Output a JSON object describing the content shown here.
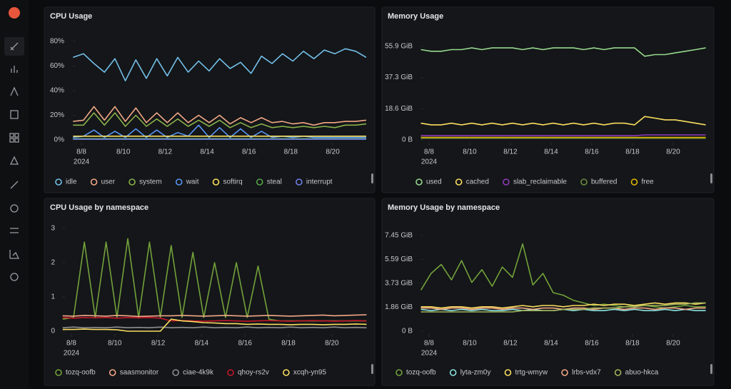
{
  "chart_data": [
    {
      "type": "line",
      "title": "CPU Usage",
      "x": [
        7.6,
        8.1,
        8.6,
        9.1,
        9.6,
        10.1,
        10.6,
        11.1,
        11.6,
        12.1,
        12.6,
        13.1,
        13.6,
        14.1,
        14.6,
        15.1,
        15.6,
        16.1,
        16.6,
        17.1,
        17.6,
        18.1,
        18.6,
        19.1,
        19.6,
        20.1,
        20.6,
        21.1,
        21.6
      ],
      "xlim": [
        7.6,
        21.6
      ],
      "xticks": [
        {
          "value": 8,
          "label": "8/8"
        },
        {
          "value": 10,
          "label": "8/10"
        },
        {
          "value": 12,
          "label": "8/12"
        },
        {
          "value": 14,
          "label": "8/14"
        },
        {
          "value": 16,
          "label": "8/16"
        },
        {
          "value": 18,
          "label": "8/18"
        },
        {
          "value": 20,
          "label": "8/20"
        }
      ],
      "x_year": "2024",
      "ylim": [
        0,
        80
      ],
      "yticks": [
        {
          "value": 0,
          "label": "0%"
        },
        {
          "value": 20,
          "label": "20%"
        },
        {
          "value": 40,
          "label": "40%"
        },
        {
          "value": 60,
          "label": "60%"
        },
        {
          "value": 80,
          "label": "80%"
        }
      ],
      "series": [
        {
          "name": "idle",
          "color": "#73bfe8",
          "values": [
            67,
            70,
            62,
            55,
            66,
            48,
            65,
            50,
            66,
            52,
            67,
            55,
            64,
            56,
            66,
            58,
            63,
            54,
            68,
            62,
            70,
            64,
            72,
            66,
            73,
            70,
            74,
            72,
            67
          ]
        },
        {
          "name": "user",
          "color": "#f2a886",
          "values": [
            15,
            16,
            27,
            16,
            27,
            15,
            26,
            14,
            22,
            14,
            22,
            14,
            20,
            14,
            20,
            13,
            18,
            14,
            18,
            14,
            15,
            13,
            14,
            12,
            14,
            14,
            15,
            15,
            16
          ]
        },
        {
          "name": "system",
          "color": "#8ab04a",
          "values": [
            12,
            12,
            22,
            12,
            22,
            11,
            20,
            11,
            17,
            11,
            17,
            11,
            16,
            11,
            16,
            10,
            14,
            10,
            13,
            10,
            11,
            10,
            11,
            10,
            11,
            10,
            12,
            12,
            13
          ]
        },
        {
          "name": "wait",
          "color": "#5794f2",
          "values": [
            2,
            3,
            8,
            2,
            7,
            2,
            9,
            2,
            8,
            2,
            6,
            3,
            12,
            2,
            10,
            2,
            9,
            2,
            7,
            2,
            3,
            2,
            3,
            2,
            2,
            2,
            2,
            2,
            2
          ]
        },
        {
          "name": "softirq",
          "color": "#fade5f",
          "values": [
            3,
            3,
            3,
            3,
            3,
            3,
            3,
            3,
            3,
            3,
            3,
            3,
            3,
            3,
            3,
            3,
            3,
            3,
            3,
            3,
            3,
            3,
            3,
            3,
            3,
            3,
            3,
            3,
            3
          ]
        },
        {
          "name": "steal",
          "color": "#56a64b",
          "values": [
            1,
            1,
            1,
            1,
            1,
            1,
            1,
            1,
            1,
            1,
            1,
            1,
            1,
            1,
            1,
            1,
            1,
            1,
            1,
            1,
            1,
            1,
            1,
            1,
            1,
            1,
            1,
            1,
            1
          ]
        },
        {
          "name": "interrupt",
          "color": "#6f7fe6",
          "values": [
            0.5,
            0.5,
            0.5,
            0.5,
            0.5,
            0.5,
            0.5,
            0.5,
            0.5,
            0.5,
            0.5,
            0.5,
            0.5,
            0.5,
            0.5,
            0.5,
            0.5,
            0.5,
            0.5,
            0.5,
            0.5,
            0.5,
            0.5,
            0.5,
            0.5,
            0.5,
            0.5,
            0.5,
            0.5
          ]
        }
      ]
    },
    {
      "type": "line",
      "title": "Memory Usage",
      "x": [
        7.6,
        8.1,
        8.6,
        9.1,
        9.6,
        10.1,
        10.6,
        11.1,
        11.6,
        12.1,
        12.6,
        13.1,
        13.6,
        14.1,
        14.6,
        15.1,
        15.6,
        16.1,
        16.6,
        17.1,
        17.6,
        18.1,
        18.6,
        19.1,
        19.6,
        20.1,
        20.6,
        21.1,
        21.6
      ],
      "xlim": [
        7.6,
        21.6
      ],
      "xticks": [
        {
          "value": 8,
          "label": "8/8"
        },
        {
          "value": 10,
          "label": "8/10"
        },
        {
          "value": 12,
          "label": "8/12"
        },
        {
          "value": 14,
          "label": "8/14"
        },
        {
          "value": 16,
          "label": "8/16"
        },
        {
          "value": 18,
          "label": "8/18"
        },
        {
          "value": 20,
          "label": "8/20"
        }
      ],
      "x_year": "2024",
      "ylim": [
        0,
        55.9
      ],
      "yticks": [
        {
          "value": 0,
          "label": "0 B"
        },
        {
          "value": 18.6,
          "label": "18.6 GiB"
        },
        {
          "value": 37.3,
          "label": "37.3 GiB"
        },
        {
          "value": 55.9,
          "label": "55.9 GiB"
        }
      ],
      "series": [
        {
          "name": "used",
          "color": "#96d98d",
          "values": [
            54,
            53,
            53,
            54,
            54,
            55,
            54,
            55,
            55,
            55,
            54,
            55,
            54,
            55,
            55,
            55,
            54,
            55,
            54,
            55,
            55,
            55,
            50,
            51,
            51,
            52,
            53,
            54,
            55
          ]
        },
        {
          "name": "cached",
          "color": "#fade5f",
          "values": [
            10,
            9,
            9,
            10,
            9,
            10,
            9,
            10,
            9,
            10,
            9,
            10,
            9,
            10,
            9,
            10,
            9,
            10,
            9,
            10,
            10,
            9,
            14,
            13,
            12,
            12,
            11,
            10,
            9
          ]
        },
        {
          "name": "slab_reclaimable",
          "color": "#8f3bb8",
          "values": [
            2.5,
            2.5,
            2.5,
            2.5,
            2.5,
            2.5,
            2.5,
            2.5,
            2.5,
            2.5,
            2.5,
            2.5,
            2.5,
            2.5,
            2.5,
            2.5,
            2.5,
            2.5,
            2.5,
            2.5,
            2.5,
            2.5,
            3,
            3,
            3,
            3,
            3,
            3,
            3
          ]
        },
        {
          "name": "buffered",
          "color": "#6b8c3a",
          "values": [
            1,
            1,
            1,
            1,
            1,
            1,
            1,
            1,
            1,
            1,
            1,
            1,
            1,
            1,
            1,
            1,
            1,
            1,
            1,
            1,
            1,
            1,
            1,
            1,
            1,
            1,
            1,
            1,
            1
          ]
        },
        {
          "name": "free",
          "color": "#e0b400",
          "values": [
            1.5,
            1.5,
            1.5,
            1.5,
            1.5,
            1.5,
            1.5,
            1.5,
            1.5,
            1.5,
            1.5,
            1.5,
            1.5,
            1.5,
            1.5,
            1.5,
            1.5,
            1.5,
            1.5,
            1.5,
            1.5,
            1.5,
            1.5,
            1.5,
            1.5,
            1.5,
            1.5,
            1.5,
            1.5
          ]
        }
      ]
    },
    {
      "type": "line",
      "title": "CPU Usage by namespace",
      "x": [
        7.6,
        8.1,
        8.6,
        9.1,
        9.6,
        10.1,
        10.6,
        11.1,
        11.6,
        12.1,
        12.6,
        13.1,
        13.6,
        14.1,
        14.6,
        15.1,
        15.6,
        16.1,
        16.6,
        17.1,
        17.6,
        18.1,
        18.6,
        19.1,
        19.6,
        20.1,
        20.6,
        21.1,
        21.6
      ],
      "xlim": [
        7.6,
        21.6
      ],
      "xticks": [
        {
          "value": 8,
          "label": "8/8"
        },
        {
          "value": 10,
          "label": "8/10"
        },
        {
          "value": 12,
          "label": "8/12"
        },
        {
          "value": 14,
          "label": "8/14"
        },
        {
          "value": 16,
          "label": "8/16"
        },
        {
          "value": 18,
          "label": "8/18"
        },
        {
          "value": 20,
          "label": "8/20"
        }
      ],
      "x_year": "2024",
      "ylim": [
        0,
        3
      ],
      "yticks": [
        0,
        1,
        2,
        3
      ],
      "series": [
        {
          "name": "tozq-oofb",
          "color": "#73a13a",
          "values": [
            0.35,
            0.4,
            2.6,
            0.4,
            2.6,
            0.4,
            2.7,
            0.4,
            2.6,
            0.4,
            2.5,
            0.4,
            2.3,
            0.4,
            2.0,
            0.4,
            2.0,
            0.4,
            1.9,
            0.35,
            0.3,
            0.3,
            0.3,
            0.3,
            0.3,
            0.3,
            0.3,
            0.3,
            0.3
          ]
        },
        {
          "name": "saasmonitor",
          "color": "#f2a886",
          "values": [
            0.45,
            0.44,
            0.46,
            0.45,
            0.44,
            0.46,
            0.45,
            0.43,
            0.44,
            0.45,
            0.45,
            0.46,
            0.45,
            0.44,
            0.45,
            0.46,
            0.45,
            0.44,
            0.45,
            0.46,
            0.45,
            0.44,
            0.45,
            0.46,
            0.47,
            0.45,
            0.46,
            0.47,
            0.48
          ]
        },
        {
          "name": "ciae-4k9k",
          "color": "#8e8e8e",
          "values": [
            0.1,
            0.12,
            0.1,
            0.11,
            0.1,
            0.12,
            0.1,
            0.11,
            0.1,
            0.12,
            0.1,
            0.11,
            0.1,
            0.12,
            0.1,
            0.11,
            0.1,
            0.12,
            0.1,
            0.11,
            0.1,
            0.12,
            0.1,
            0.11,
            0.1,
            0.12,
            0.1,
            0.11,
            0.1
          ]
        },
        {
          "name": "qhoy-rs2v",
          "color": "#c4162a",
          "values": [
            0.4,
            0.38,
            0.4,
            0.39,
            0.4,
            0.38,
            0.4,
            0.39,
            0.4,
            0.38,
            0.3,
            0.31,
            0.3,
            0.29,
            0.3,
            0.31,
            0.3,
            0.29,
            0.3,
            0.31,
            0.3,
            0.29,
            0.3,
            0.31,
            0.3,
            0.29,
            0.3,
            0.31,
            0.3
          ]
        },
        {
          "name": "xcqh-yn95",
          "color": "#fade5f",
          "values": [
            0.05,
            0.05,
            0.06,
            0.05,
            0.05,
            0.04,
            0.0,
            0.0,
            0.0,
            0.0,
            0.35,
            0.3,
            0.28,
            0.25,
            0.24,
            0.22,
            0.22,
            0.2,
            0.21,
            0.2,
            0.2,
            0.19,
            0.2,
            0.2,
            0.19,
            0.2,
            0.2,
            0.21,
            0.2
          ]
        }
      ]
    },
    {
      "type": "line",
      "title": "Memory Usage by namespace",
      "x": [
        7.6,
        8.1,
        8.6,
        9.1,
        9.6,
        10.1,
        10.6,
        11.1,
        11.6,
        12.1,
        12.6,
        13.1,
        13.6,
        14.1,
        14.6,
        15.1,
        15.6,
        16.1,
        16.6,
        17.1,
        17.6,
        18.1,
        18.6,
        19.1,
        19.6,
        20.1,
        20.6,
        21.1,
        21.6
      ],
      "xlim": [
        7.6,
        21.6
      ],
      "xticks": [
        {
          "value": 8,
          "label": "8/8"
        },
        {
          "value": 10,
          "label": "8/10"
        },
        {
          "value": 12,
          "label": "8/12"
        },
        {
          "value": 14,
          "label": "8/14"
        },
        {
          "value": 16,
          "label": "8/16"
        },
        {
          "value": 18,
          "label": "8/18"
        },
        {
          "value": 20,
          "label": "8/20"
        }
      ],
      "x_year": "2024",
      "ylim": [
        0,
        7.45
      ],
      "yticks": [
        {
          "value": 0,
          "label": "0 B"
        },
        {
          "value": 1.86,
          "label": "1.86 GiB"
        },
        {
          "value": 3.73,
          "label": "3.73 GiB"
        },
        {
          "value": 5.59,
          "label": "5.59 GiB"
        },
        {
          "value": 7.45,
          "label": "7.45 GiB"
        }
      ],
      "series": [
        {
          "name": "tozq-oofb",
          "color": "#73a13a",
          "values": [
            3.2,
            4.5,
            5.2,
            4.0,
            5.5,
            3.8,
            4.8,
            3.5,
            5.0,
            4.2,
            6.8,
            3.6,
            4.5,
            3.0,
            2.8,
            2.4,
            2.2,
            2.0,
            2.1,
            2.0,
            1.9,
            2.0,
            2.0,
            1.9,
            1.8,
            1.9,
            2.0,
            1.9,
            1.9
          ]
        },
        {
          "name": "lyta-zm0y",
          "color": "#8ae2e0",
          "values": [
            1.7,
            1.6,
            1.7,
            1.6,
            1.7,
            1.6,
            1.7,
            1.6,
            1.6,
            1.7,
            1.6,
            1.7,
            1.6,
            1.6,
            1.7,
            1.6,
            1.7,
            1.6,
            1.6,
            1.7,
            1.6,
            1.7,
            1.6,
            1.6,
            1.7,
            1.6,
            1.7,
            1.6,
            1.6
          ]
        },
        {
          "name": "trtg-wmyw",
          "color": "#fade5f",
          "values": [
            1.9,
            1.9,
            1.8,
            1.9,
            1.9,
            1.8,
            1.9,
            1.9,
            1.8,
            1.9,
            2.0,
            1.9,
            2.0,
            2.0,
            1.9,
            2.0,
            2.0,
            2.1,
            2.0,
            2.1,
            2.1,
            2.0,
            2.1,
            2.2,
            2.1,
            2.2,
            2.2,
            2.1,
            2.2
          ]
        },
        {
          "name": "lrbs-vdx7",
          "color": "#f2a886",
          "values": [
            1.8,
            1.8,
            1.7,
            1.8,
            1.8,
            1.7,
            1.8,
            1.8,
            1.7,
            1.8,
            1.8,
            1.7,
            1.8,
            1.8,
            1.7,
            1.8,
            1.8,
            1.7,
            1.8,
            1.8,
            1.7,
            1.8,
            1.8,
            1.7,
            1.8,
            1.8,
            1.7,
            1.8,
            1.8
          ]
        },
        {
          "name": "abuo-hkca",
          "color": "#a0b45a",
          "values": [
            1.5,
            1.5,
            1.5,
            1.5,
            1.5,
            1.5,
            1.5,
            1.5,
            1.5,
            1.5,
            1.6,
            1.6,
            1.6,
            1.6,
            1.7,
            1.7,
            1.7,
            1.8,
            1.8,
            1.8,
            1.9,
            1.9,
            2.0,
            2.0,
            2.0,
            2.1,
            2.1,
            2.2,
            2.2
          ]
        }
      ]
    }
  ]
}
